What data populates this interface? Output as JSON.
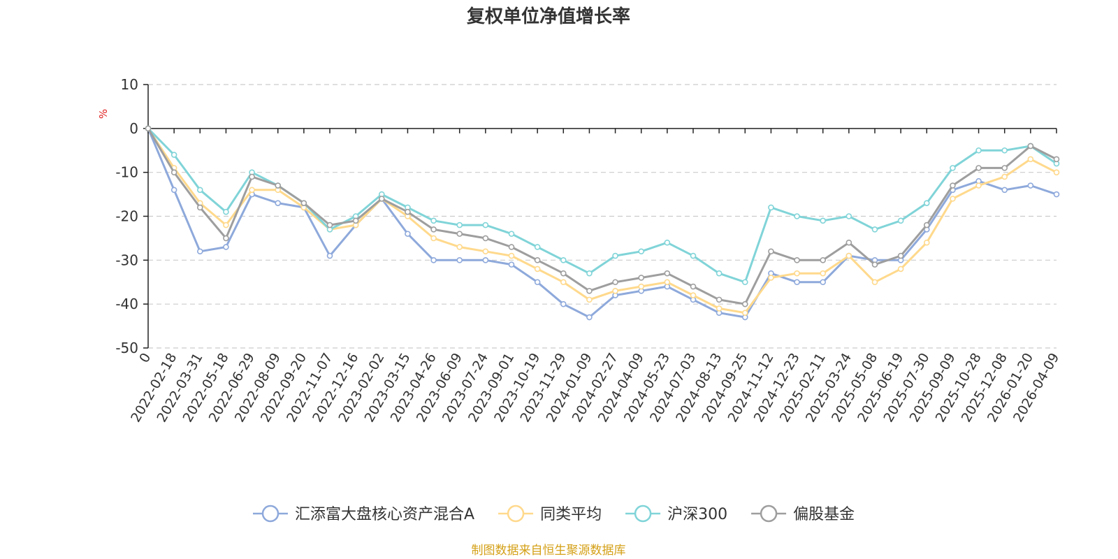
{
  "chart_data": {
    "type": "line",
    "title": "复权单位净值增长率",
    "ylabel": "%",
    "ylim": [
      -50,
      10
    ],
    "yticks": [
      10,
      0,
      -10,
      -20,
      -30,
      -40,
      -50
    ],
    "categories": [
      "0",
      "2022-02-18",
      "2022-03-31",
      "2022-05-18",
      "2022-06-29",
      "2022-08-09",
      "2022-09-20",
      "2022-11-07",
      "2022-12-16",
      "2023-02-02",
      "2023-03-15",
      "2023-04-26",
      "2023-06-09",
      "2023-07-24",
      "2023-09-01",
      "2023-10-19",
      "2023-11-29",
      "2024-01-09",
      "2024-02-27",
      "2024-04-09",
      "2024-05-23",
      "2024-07-03",
      "2024-08-13",
      "2024-09-25",
      "2024-11-12",
      "2024-12-23",
      "2025-02-11",
      "2025-03-24",
      "2025-05-08",
      "2025-06-19",
      "2025-07-30",
      "2025-09-09",
      "2025-10-28",
      "2025-12-08",
      "2026-01-20",
      "2026-04-09"
    ],
    "series": [
      {
        "name": "汇添富大盘核心资产混合A",
        "color": "#8ea9db",
        "values": [
          0,
          -14,
          -28,
          -27,
          -15,
          -17,
          -18,
          -29,
          -22,
          -16,
          -24,
          -30,
          -30,
          -30,
          -31,
          -35,
          -40,
          -43,
          -38,
          -37,
          -36,
          -39,
          -42,
          -43,
          -33,
          -35,
          -35,
          -29,
          -30,
          -30,
          -23,
          -14,
          -12,
          -14,
          -13,
          -15
        ]
      },
      {
        "name": "同类平均",
        "color": "#ffd98c",
        "values": [
          0,
          -9,
          -17,
          -22,
          -14,
          -14,
          -18,
          -23,
          -22,
          -16,
          -20,
          -25,
          -27,
          -28,
          -29,
          -32,
          -35,
          -39,
          -37,
          -36,
          -35,
          -38,
          -41,
          -42,
          -34,
          -33,
          -33,
          -29,
          -35,
          -32,
          -26,
          -16,
          -13,
          -11,
          -7,
          -10
        ]
      },
      {
        "name": "沪深300",
        "color": "#80d4d8",
        "values": [
          0,
          -6,
          -14,
          -19,
          -10,
          -13,
          -17,
          -23,
          -20,
          -15,
          -18,
          -21,
          -22,
          -22,
          -24,
          -27,
          -30,
          -33,
          -29,
          -28,
          -26,
          -29,
          -33,
          -35,
          -18,
          -20,
          -21,
          -20,
          -23,
          -21,
          -17,
          -9,
          -5,
          -5,
          -4,
          -8
        ]
      },
      {
        "name": "偏股基金",
        "color": "#9e9e9e",
        "values": [
          0,
          -10,
          -18,
          -25,
          -11,
          -13,
          -17,
          -22,
          -21,
          -16,
          -19,
          -23,
          -24,
          -25,
          -27,
          -30,
          -33,
          -37,
          -35,
          -34,
          -33,
          -36,
          -39,
          -40,
          -28,
          -30,
          -30,
          -26,
          -31,
          -29,
          -22,
          -13,
          -9,
          -9,
          -4,
          -7
        ]
      }
    ]
  },
  "footer": {
    "source": "制图数据来自恒生聚源数据库"
  }
}
